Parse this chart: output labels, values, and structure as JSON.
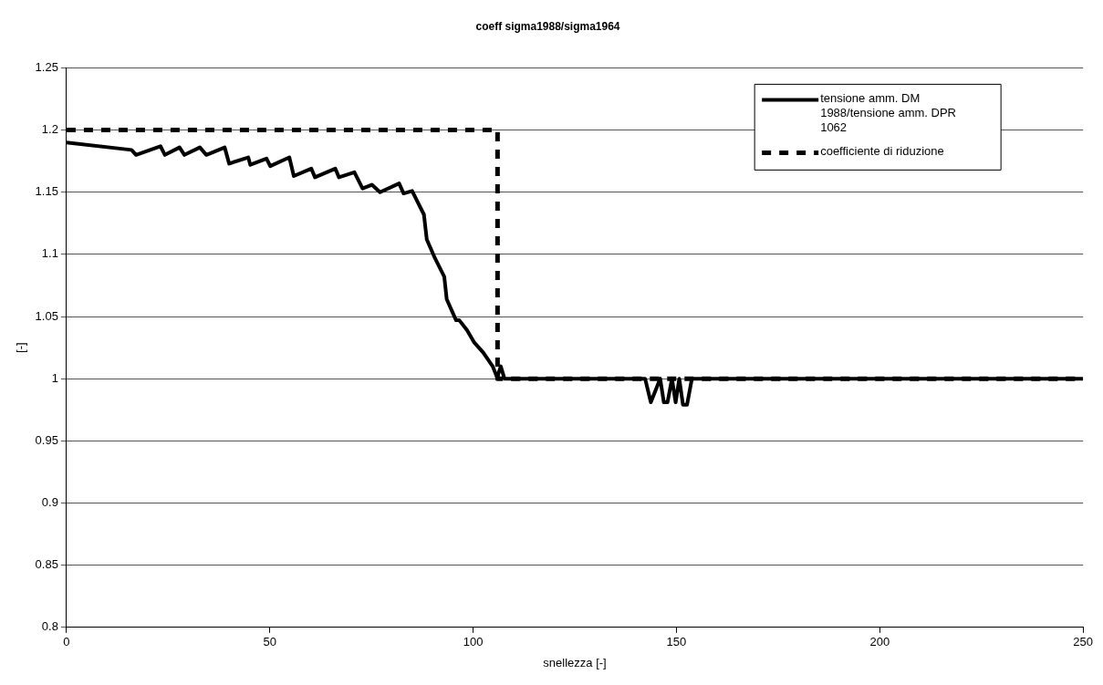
{
  "chart_data": {
    "type": "line",
    "title": "coeff sigma1988/sigma1964",
    "xlabel": "snellezza [-]",
    "ylabel": "[-]",
    "xlim": [
      0,
      250
    ],
    "xticks": [
      0,
      50,
      100,
      150,
      200,
      250
    ],
    "ylim": [
      0.8,
      1.25
    ],
    "yticks": [
      0.8,
      0.85,
      0.9,
      0.95,
      1,
      1.05,
      1.1,
      1.15,
      1.2,
      1.25
    ],
    "grid": "y",
    "legend": "top right",
    "marker": "none",
    "series": [
      {
        "name": "tensione amm. DM 1988/tensione amm. DPR 1062",
        "color": "#000000",
        "line_style": "solid",
        "x": [
          0,
          16,
          17.1,
          23.1,
          24.2,
          27.8,
          29,
          32.8,
          34.4,
          38.9,
          40,
          44.7,
          45.2,
          49.2,
          50.1,
          54.8,
          55.9,
          60.2,
          61.1,
          66.1,
          67,
          70.8,
          72.8,
          75.1,
          77.1,
          81.8,
          82.9,
          85,
          87.9,
          88.6,
          90.6,
          92.9,
          93.5,
          95.8,
          96.6,
          98.5,
          100.3,
          102.5,
          104.8,
          105.9,
          106.8,
          107.7,
          142.3,
          143.7,
          146,
          146.9,
          147.8,
          148.9,
          149.8,
          150.7,
          151.6,
          152.6,
          153.8,
          250
        ],
        "values": [
          1.19,
          1.184,
          1.18,
          1.187,
          1.18,
          1.186,
          1.18,
          1.186,
          1.18,
          1.186,
          1.173,
          1.178,
          1.172,
          1.177,
          1.171,
          1.178,
          1.163,
          1.169,
          1.162,
          1.169,
          1.162,
          1.166,
          1.153,
          1.156,
          1.15,
          1.157,
          1.149,
          1.151,
          1.132,
          1.112,
          1.097,
          1.082,
          1.064,
          1.047,
          1.047,
          1.039,
          1.029,
          1.021,
          1.01,
          1.001,
          1.01,
          1,
          1,
          0.981,
          1,
          0.981,
          0.981,
          1,
          0.981,
          1,
          0.979,
          0.979,
          1,
          1
        ]
      },
      {
        "name": "coefficiente di riduzione",
        "color": "#000000",
        "line_style": "dashed",
        "x": [
          0,
          106,
          106,
          250
        ],
        "values": [
          1.2,
          1.2,
          1,
          1
        ]
      }
    ]
  }
}
